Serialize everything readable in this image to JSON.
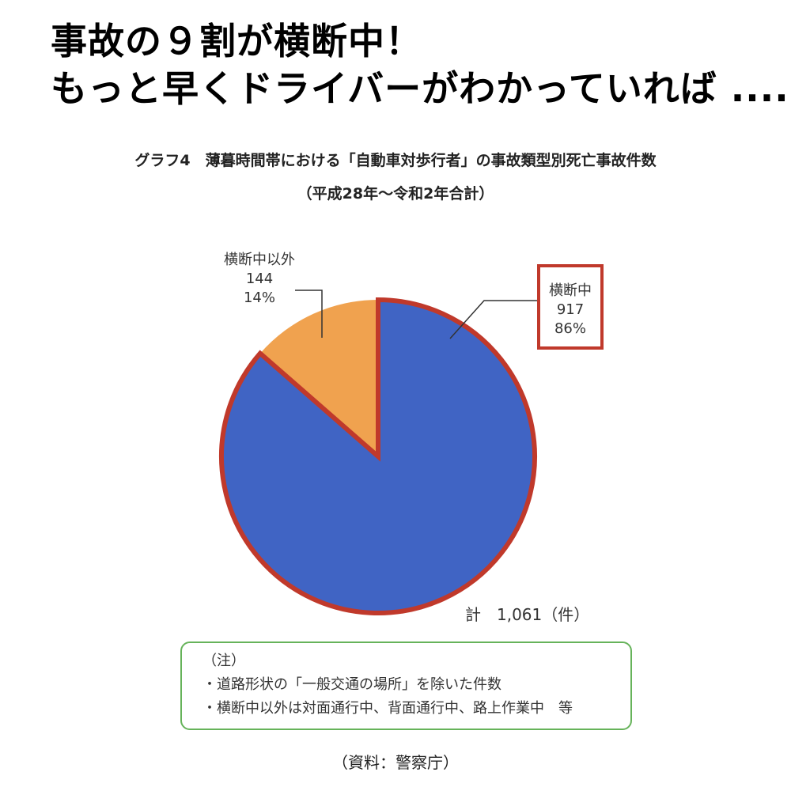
{
  "headline": {
    "line1": "事故の９割が横断中！",
    "line2": "もっと早くドライバーがわかっていれば ...."
  },
  "chart_data": {
    "type": "pie",
    "title": "グラフ4　薄暮時間帯における「自動車対歩行者」の事故類型別死亡事故件数",
    "subtitle": "（平成28年～令和2年合計）",
    "categories": [
      "横断中",
      "横断中以外"
    ],
    "values": [
      917,
      144
    ],
    "percent_labels": [
      "86%",
      "14%"
    ],
    "value_labels": [
      "917",
      "144"
    ],
    "colors": [
      "#4064c4",
      "#f0a24f"
    ],
    "outline_color": "#c0392b",
    "highlight_box_color": "#c0392b",
    "total_label": "計　1,061（件）"
  },
  "notes": {
    "heading": "（注）",
    "items": [
      "・道路形状の「一般交通の場所」を除いた件数",
      "・横断中以外は対面通行中、背面通行中、路上作業中　等"
    ]
  },
  "source": "（資料：警察庁）"
}
